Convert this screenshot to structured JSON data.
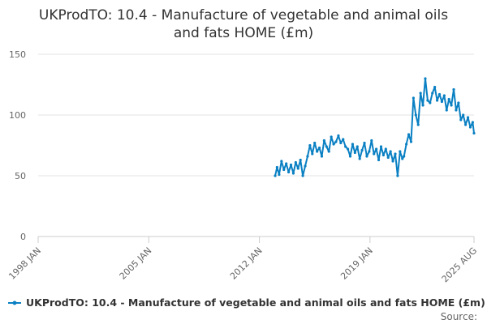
{
  "chart_data": {
    "type": "line",
    "title": [
      "UKProdTO: 10.4 - Manufacture of vegetable and animal oils",
      "and fats HOME (£m)"
    ],
    "xlabel": "",
    "ylabel": "",
    "ylim": [
      0,
      150
    ],
    "yticks": [
      0,
      50,
      100,
      150
    ],
    "xrange": [
      1998.0,
      2025.583
    ],
    "xticks": [
      {
        "label": "1998 JAN",
        "value": 1998.0
      },
      {
        "label": "2005 JAN",
        "value": 2005.0
      },
      {
        "label": "2012 JAN",
        "value": 2012.0
      },
      {
        "label": "2019 JAN",
        "value": 2019.0
      },
      {
        "label": "2025 AUG",
        "value": 2025.583
      }
    ],
    "grid": "horizontal",
    "legend_position": "bottom",
    "series": [
      {
        "name": "UKProdTO: 10.4 - Manufacture of vegetable and animal oils and fats HOME (£m)",
        "color": "#0a80c3",
        "x": [
          2013.0,
          2013.12,
          2013.25,
          2013.4,
          2013.55,
          2013.7,
          2013.85,
          2014.0,
          2014.15,
          2014.3,
          2014.45,
          2014.6,
          2014.75,
          2014.9,
          2015.05,
          2015.2,
          2015.35,
          2015.5,
          2015.65,
          2015.8,
          2015.95,
          2016.1,
          2016.25,
          2016.4,
          2016.55,
          2016.7,
          2016.85,
          2017.0,
          2017.15,
          2017.3,
          2017.45,
          2017.6,
          2017.75,
          2017.9,
          2018.05,
          2018.2,
          2018.35,
          2018.5,
          2018.65,
          2018.8,
          2018.95,
          2019.1,
          2019.25,
          2019.4,
          2019.55,
          2019.7,
          2019.85,
          2020.0,
          2020.15,
          2020.3,
          2020.45,
          2020.6,
          2020.75,
          2020.9,
          2021.05,
          2021.15,
          2021.3,
          2021.45,
          2021.6,
          2021.75,
          2021.9,
          2022.05,
          2022.2,
          2022.35,
          2022.5,
          2022.65,
          2022.8,
          2022.95,
          2023.1,
          2023.25,
          2023.4,
          2023.55,
          2023.7,
          2023.85,
          2024.0,
          2024.15,
          2024.3,
          2024.45,
          2024.6,
          2024.75,
          2024.9,
          2025.05,
          2025.2,
          2025.35,
          2025.5,
          2025.583
        ],
        "values": [
          50,
          57,
          51,
          62,
          55,
          60,
          53,
          59,
          52,
          61,
          56,
          63,
          50,
          58,
          66,
          75,
          68,
          77,
          70,
          73,
          66,
          79,
          74,
          70,
          82,
          76,
          78,
          83,
          77,
          80,
          74,
          72,
          66,
          76,
          69,
          74,
          64,
          71,
          77,
          66,
          70,
          79,
          68,
          72,
          63,
          74,
          67,
          72,
          65,
          70,
          62,
          68,
          50,
          70,
          64,
          66,
          76,
          84,
          78,
          114,
          100,
          92,
          118,
          108,
          130,
          112,
          110,
          118,
          123,
          112,
          117,
          111,
          116,
          104,
          113,
          108,
          121,
          104,
          110,
          96,
          100,
          92,
          98,
          90,
          94,
          85
        ]
      }
    ],
    "source_label": "Source:"
  }
}
